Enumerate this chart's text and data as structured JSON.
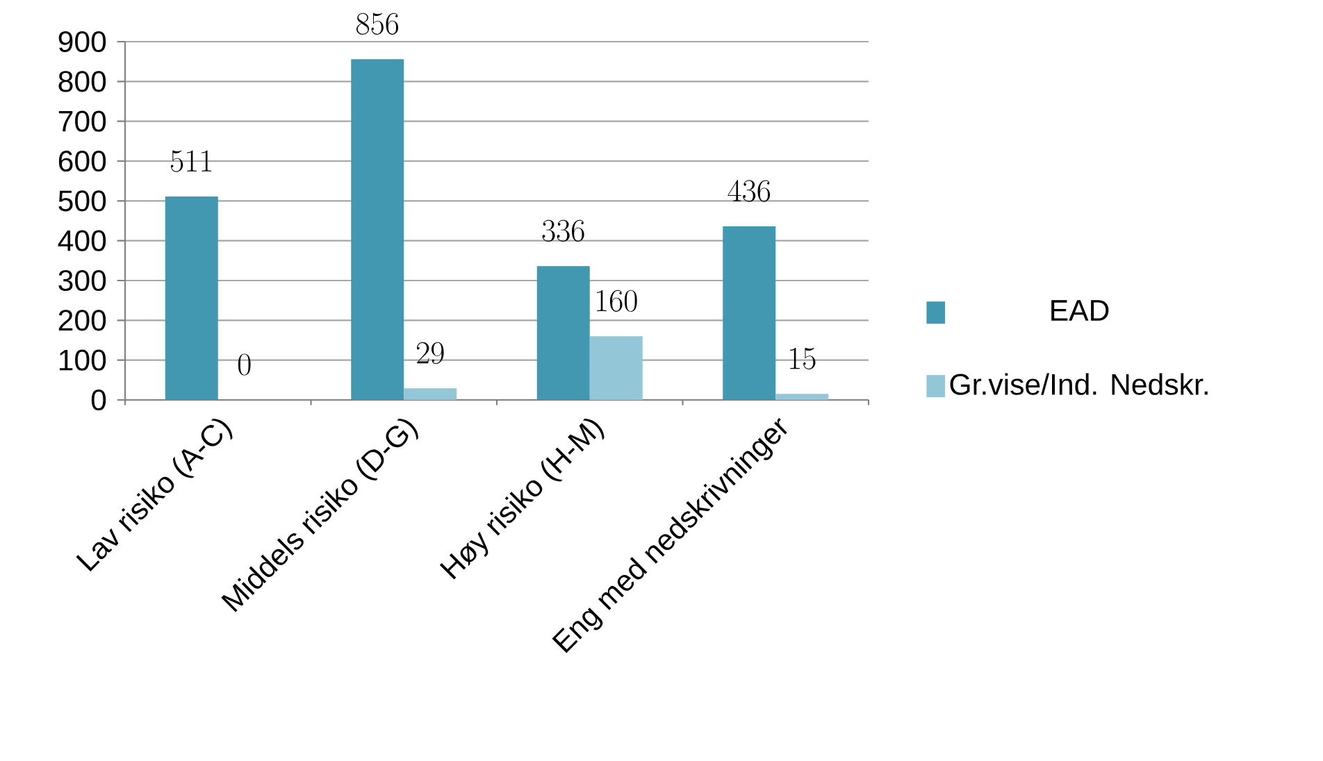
{
  "chart_data": {
    "type": "bar",
    "categories": [
      "Lav risiko (A-C)",
      "Middels risiko (D-G)",
      "Høy risiko (H-M)",
      "Eng med nedskrivninger"
    ],
    "series": [
      {
        "name": "EAD",
        "color": "#4198b0",
        "values": [
          511,
          856,
          336,
          436
        ]
      },
      {
        "name": "Gr.vise/Ind. Nedskr.",
        "color": "#93c6d6",
        "values": [
          0,
          29,
          160,
          15
        ]
      }
    ],
    "ylim": [
      0,
      900
    ],
    "yticks": [
      0,
      100,
      200,
      300,
      400,
      500,
      600,
      700,
      800,
      900
    ],
    "grid": "y",
    "legend": "right",
    "data_labels": true
  }
}
